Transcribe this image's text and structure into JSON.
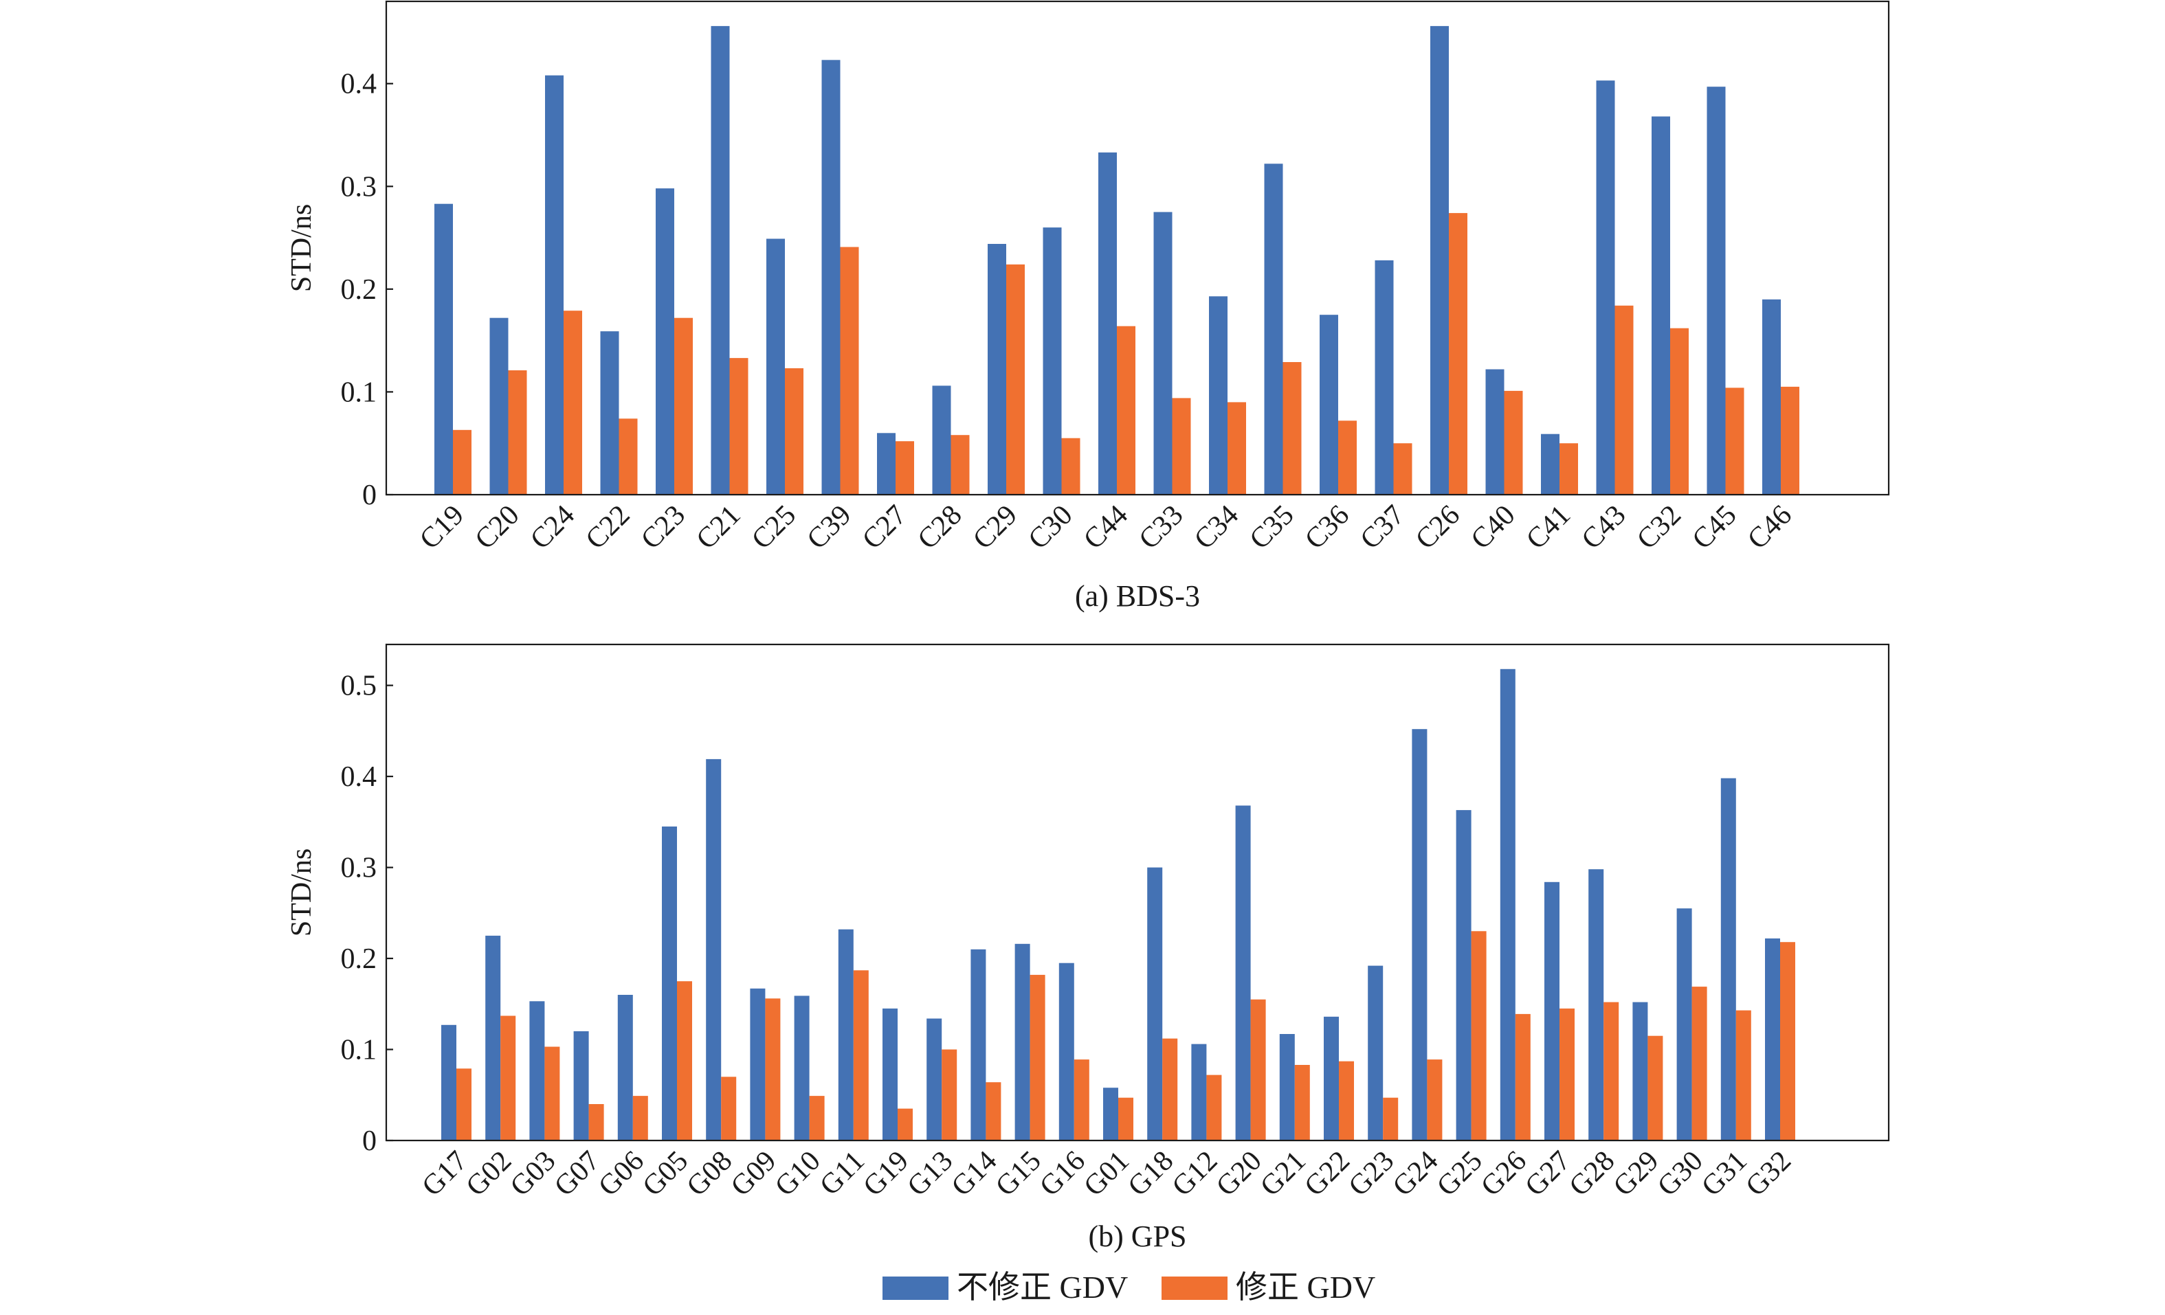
{
  "legend": {
    "series_a_label": "不修正 GDV",
    "series_b_label": "修正 GDV"
  },
  "colors": {
    "series_a": "#4472b4",
    "series_b": "#f07030"
  },
  "chart_data": [
    {
      "type": "bar",
      "caption": "(a) BDS-3",
      "ylabel": "STD/ns",
      "ylim": [
        0,
        0.48
      ],
      "yticks": [
        0,
        0.1,
        0.2,
        0.3,
        0.4
      ],
      "ytick_labels": [
        "0",
        "0.1",
        "0.2",
        "0.3",
        "0.4"
      ],
      "grid": false,
      "categories": [
        "C19",
        "C20",
        "C24",
        "C22",
        "C23",
        "C21",
        "C25",
        "C39",
        "C27",
        "C28",
        "C29",
        "C30",
        "C44",
        "C33",
        "C34",
        "C35",
        "C36",
        "C37",
        "C26",
        "C40",
        "C41",
        "C43",
        "C32",
        "C45",
        "C46"
      ],
      "series": [
        {
          "name": "不修正 GDV",
          "values": [
            0.283,
            0.172,
            0.408,
            0.159,
            0.298,
            0.456,
            0.249,
            0.423,
            0.06,
            0.106,
            0.244,
            0.26,
            0.333,
            0.275,
            0.193,
            0.322,
            0.175,
            0.228,
            0.456,
            0.122,
            0.059,
            0.403,
            0.368,
            0.397,
            0.19
          ]
        },
        {
          "name": "修正 GDV",
          "values": [
            0.063,
            0.121,
            0.179,
            0.074,
            0.172,
            0.133,
            0.123,
            0.241,
            0.052,
            0.058,
            0.224,
            0.055,
            0.164,
            0.094,
            0.09,
            0.129,
            0.072,
            0.05,
            0.274,
            0.101,
            0.05,
            0.184,
            0.162,
            0.104,
            0.105
          ]
        }
      ]
    },
    {
      "type": "bar",
      "caption": "(b) GPS",
      "ylabel": "STD/ns",
      "ylim": [
        0,
        0.545
      ],
      "yticks": [
        0,
        0.1,
        0.2,
        0.3,
        0.4,
        0.5
      ],
      "ytick_labels": [
        "0",
        "0.1",
        "0.2",
        "0.3",
        "0.4",
        "0.5"
      ],
      "grid": false,
      "categories": [
        "G17",
        "G02",
        "G03",
        "G07",
        "G06",
        "G05",
        "G08",
        "G09",
        "G10",
        "G11",
        "G19",
        "G13",
        "G14",
        "G15",
        "G16",
        "G01",
        "G18",
        "G12",
        "G20",
        "G21",
        "G22",
        "G23",
        "G24",
        "G25",
        "G26",
        "G27",
        "G28",
        "G29",
        "G30",
        "G31",
        "G32"
      ],
      "series": [
        {
          "name": "不修正 GDV",
          "values": [
            0.127,
            0.225,
            0.153,
            0.12,
            0.16,
            0.345,
            0.419,
            0.167,
            0.159,
            0.232,
            0.145,
            0.134,
            0.21,
            0.216,
            0.195,
            0.058,
            0.3,
            0.106,
            0.368,
            0.117,
            0.136,
            0.192,
            0.452,
            0.363,
            0.518,
            0.284,
            0.298,
            0.152,
            0.255,
            0.398,
            0.222
          ]
        },
        {
          "name": "修正 GDV",
          "values": [
            0.079,
            0.137,
            0.103,
            0.04,
            0.049,
            0.175,
            0.07,
            0.156,
            0.049,
            0.187,
            0.035,
            0.1,
            0.064,
            0.182,
            0.089,
            0.047,
            0.112,
            0.072,
            0.155,
            0.083,
            0.087,
            0.047,
            0.089,
            0.23,
            0.139,
            0.145,
            0.152,
            0.115,
            0.169,
            0.143,
            0.218
          ]
        }
      ]
    }
  ]
}
